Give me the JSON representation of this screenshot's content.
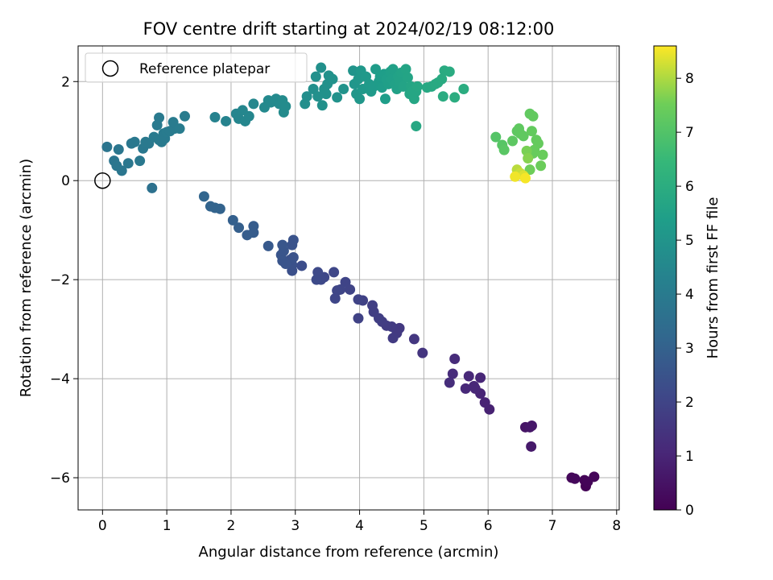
{
  "chart_data": {
    "type": "scatter",
    "title": "FOV centre drift starting at 2024/02/19 08:12:00",
    "xlabel": "Angular distance from reference (arcmin)",
    "ylabel": "Rotation from reference (arcmin)",
    "xlim": [
      -0.38,
      8.04
    ],
    "ylim": [
      -6.65,
      2.72
    ],
    "xticks": [
      0,
      1,
      2,
      3,
      4,
      5,
      6,
      7,
      8
    ],
    "yticks": [
      -6,
      -4,
      -2,
      0,
      2
    ],
    "grid": true,
    "legend": {
      "placement": "upper-left",
      "entries": [
        {
          "label": "Reference platepar",
          "marker": "open-circle",
          "color": "#000000"
        }
      ]
    },
    "reference_point": {
      "x": 0,
      "y": 0
    },
    "colorbar": {
      "label": "Hours from first FF file",
      "range": [
        0,
        8.6
      ],
      "ticks": [
        0,
        1,
        2,
        3,
        4,
        5,
        6,
        7,
        8
      ],
      "colormap": "viridis"
    },
    "points": [
      {
        "x": 7.52,
        "y": -6.17,
        "c": 0.05
      },
      {
        "x": 7.5,
        "y": -6.05,
        "c": 0.08
      },
      {
        "x": 7.55,
        "y": -6.08,
        "c": 0.12
      },
      {
        "x": 7.65,
        "y": -5.98,
        "c": 0.15
      },
      {
        "x": 7.3,
        "y": -6.0,
        "c": 0.18
      },
      {
        "x": 7.35,
        "y": -6.02,
        "c": 0.2
      },
      {
        "x": 6.58,
        "y": -4.98,
        "c": 0.55
      },
      {
        "x": 6.65,
        "y": -4.98,
        "c": 0.6
      },
      {
        "x": 6.68,
        "y": -4.95,
        "c": 0.62
      },
      {
        "x": 6.67,
        "y": -5.37,
        "c": 0.65
      },
      {
        "x": 6.02,
        "y": -4.62,
        "c": 0.9
      },
      {
        "x": 5.95,
        "y": -4.48,
        "c": 0.95
      },
      {
        "x": 5.88,
        "y": -4.3,
        "c": 1.0
      },
      {
        "x": 5.8,
        "y": -4.2,
        "c": 1.05
      },
      {
        "x": 5.88,
        "y": -3.98,
        "c": 1.05
      },
      {
        "x": 5.78,
        "y": -4.15,
        "c": 1.08
      },
      {
        "x": 5.7,
        "y": -3.95,
        "c": 1.1
      },
      {
        "x": 5.65,
        "y": -4.2,
        "c": 1.12
      },
      {
        "x": 5.48,
        "y": -3.6,
        "c": 1.2
      },
      {
        "x": 5.45,
        "y": -3.9,
        "c": 1.22
      },
      {
        "x": 5.4,
        "y": -4.08,
        "c": 1.25
      },
      {
        "x": 4.98,
        "y": -3.48,
        "c": 1.5
      },
      {
        "x": 4.85,
        "y": -3.2,
        "c": 1.55
      },
      {
        "x": 4.62,
        "y": -2.98,
        "c": 1.62
      },
      {
        "x": 4.58,
        "y": -3.08,
        "c": 1.65
      },
      {
        "x": 4.52,
        "y": -3.18,
        "c": 1.68
      },
      {
        "x": 4.5,
        "y": -2.95,
        "c": 1.7
      },
      {
        "x": 4.42,
        "y": -2.93,
        "c": 1.72
      },
      {
        "x": 4.35,
        "y": -2.85,
        "c": 1.75
      },
      {
        "x": 4.3,
        "y": -2.78,
        "c": 1.78
      },
      {
        "x": 4.22,
        "y": -2.65,
        "c": 1.8
      },
      {
        "x": 4.2,
        "y": -2.52,
        "c": 1.82
      },
      {
        "x": 4.05,
        "y": -2.42,
        "c": 1.9
      },
      {
        "x": 3.98,
        "y": -2.78,
        "c": 1.92
      },
      {
        "x": 3.98,
        "y": -2.4,
        "c": 1.95
      },
      {
        "x": 3.85,
        "y": -2.2,
        "c": 1.98
      },
      {
        "x": 3.78,
        "y": -2.05,
        "c": 2.0
      },
      {
        "x": 3.7,
        "y": -2.2,
        "c": 2.02
      },
      {
        "x": 3.65,
        "y": -2.22,
        "c": 2.04
      },
      {
        "x": 3.62,
        "y": -2.38,
        "c": 2.06
      },
      {
        "x": 3.6,
        "y": -1.85,
        "c": 2.08
      },
      {
        "x": 3.45,
        "y": -1.95,
        "c": 2.12
      },
      {
        "x": 3.4,
        "y": -2.0,
        "c": 2.15
      },
      {
        "x": 3.35,
        "y": -1.85,
        "c": 2.18
      },
      {
        "x": 3.33,
        "y": -2.0,
        "c": 2.2
      },
      {
        "x": 3.1,
        "y": -1.72,
        "c": 2.3
      },
      {
        "x": 2.95,
        "y": -1.82,
        "c": 2.4
      },
      {
        "x": 2.95,
        "y": -1.7,
        "c": 2.42
      },
      {
        "x": 2.92,
        "y": -1.6,
        "c": 2.44
      },
      {
        "x": 2.97,
        "y": -1.55,
        "c": 2.46
      },
      {
        "x": 2.95,
        "y": -1.3,
        "c": 2.48
      },
      {
        "x": 2.97,
        "y": -1.2,
        "c": 2.5
      },
      {
        "x": 2.85,
        "y": -1.68,
        "c": 2.52
      },
      {
        "x": 2.8,
        "y": -1.62,
        "c": 2.54
      },
      {
        "x": 2.78,
        "y": -1.5,
        "c": 2.56
      },
      {
        "x": 2.82,
        "y": -1.42,
        "c": 2.58
      },
      {
        "x": 2.8,
        "y": -1.3,
        "c": 2.6
      },
      {
        "x": 2.58,
        "y": -1.32,
        "c": 2.7
      },
      {
        "x": 2.35,
        "y": -0.92,
        "c": 2.8
      },
      {
        "x": 2.35,
        "y": -1.05,
        "c": 2.82
      },
      {
        "x": 2.25,
        "y": -1.1,
        "c": 2.85
      },
      {
        "x": 2.12,
        "y": -0.95,
        "c": 2.9
      },
      {
        "x": 2.03,
        "y": -0.8,
        "c": 2.95
      },
      {
        "x": 1.83,
        "y": -0.57,
        "c": 3.05
      },
      {
        "x": 1.75,
        "y": -0.55,
        "c": 3.08
      },
      {
        "x": 1.68,
        "y": -0.52,
        "c": 3.1
      },
      {
        "x": 1.58,
        "y": -0.32,
        "c": 3.15
      },
      {
        "x": 0.77,
        "y": -0.15,
        "c": 3.6
      },
      {
        "x": 0.07,
        "y": 0.68,
        "c": 3.75
      },
      {
        "x": 0.18,
        "y": 0.4,
        "c": 3.78
      },
      {
        "x": 0.22,
        "y": 0.3,
        "c": 3.8
      },
      {
        "x": 0.25,
        "y": 0.63,
        "c": 3.8
      },
      {
        "x": 0.3,
        "y": 0.2,
        "c": 3.82
      },
      {
        "x": 0.4,
        "y": 0.35,
        "c": 3.85
      },
      {
        "x": 0.45,
        "y": 0.75,
        "c": 3.85
      },
      {
        "x": 0.5,
        "y": 0.78,
        "c": 3.88
      },
      {
        "x": 0.58,
        "y": 0.4,
        "c": 3.9
      },
      {
        "x": 0.63,
        "y": 0.65,
        "c": 3.9
      },
      {
        "x": 0.67,
        "y": 0.78,
        "c": 3.92
      },
      {
        "x": 0.72,
        "y": 0.75,
        "c": 3.92
      },
      {
        "x": 0.85,
        "y": 1.12,
        "c": 3.95
      },
      {
        "x": 0.88,
        "y": 1.27,
        "c": 3.95
      },
      {
        "x": 0.8,
        "y": 0.88,
        "c": 3.96
      },
      {
        "x": 0.88,
        "y": 0.82,
        "c": 3.97
      },
      {
        "x": 0.92,
        "y": 0.78,
        "c": 3.97
      },
      {
        "x": 0.95,
        "y": 0.95,
        "c": 3.98
      },
      {
        "x": 0.97,
        "y": 0.85,
        "c": 3.98
      },
      {
        "x": 1.0,
        "y": 0.98,
        "c": 4.0
      },
      {
        "x": 1.05,
        "y": 1.0,
        "c": 4.0
      },
      {
        "x": 1.12,
        "y": 1.05,
        "c": 4.02
      },
      {
        "x": 1.1,
        "y": 1.18,
        "c": 4.02
      },
      {
        "x": 1.2,
        "y": 1.05,
        "c": 4.05
      },
      {
        "x": 1.28,
        "y": 1.3,
        "c": 4.05
      },
      {
        "x": 1.75,
        "y": 1.28,
        "c": 4.3
      },
      {
        "x": 1.92,
        "y": 1.2,
        "c": 4.35
      },
      {
        "x": 2.08,
        "y": 1.35,
        "c": 4.4
      },
      {
        "x": 2.12,
        "y": 1.25,
        "c": 4.42
      },
      {
        "x": 2.18,
        "y": 1.42,
        "c": 4.44
      },
      {
        "x": 2.22,
        "y": 1.2,
        "c": 4.45
      },
      {
        "x": 2.28,
        "y": 1.3,
        "c": 4.47
      },
      {
        "x": 2.35,
        "y": 1.55,
        "c": 4.5
      },
      {
        "x": 2.52,
        "y": 1.48,
        "c": 4.55
      },
      {
        "x": 2.58,
        "y": 1.62,
        "c": 4.57
      },
      {
        "x": 2.62,
        "y": 1.58,
        "c": 4.58
      },
      {
        "x": 2.7,
        "y": 1.65,
        "c": 4.6
      },
      {
        "x": 2.75,
        "y": 1.55,
        "c": 4.62
      },
      {
        "x": 2.8,
        "y": 1.62,
        "c": 4.63
      },
      {
        "x": 2.82,
        "y": 1.38,
        "c": 4.64
      },
      {
        "x": 2.85,
        "y": 1.5,
        "c": 4.65
      },
      {
        "x": 3.15,
        "y": 1.55,
        "c": 4.75
      },
      {
        "x": 3.18,
        "y": 1.7,
        "c": 4.77
      },
      {
        "x": 3.28,
        "y": 1.85,
        "c": 4.8
      },
      {
        "x": 3.35,
        "y": 1.7,
        "c": 4.82
      },
      {
        "x": 3.32,
        "y": 2.1,
        "c": 4.83
      },
      {
        "x": 3.4,
        "y": 2.28,
        "c": 4.84
      },
      {
        "x": 3.42,
        "y": 1.52,
        "c": 4.85
      },
      {
        "x": 3.45,
        "y": 1.85,
        "c": 4.86
      },
      {
        "x": 3.5,
        "y": 1.95,
        "c": 4.87
      },
      {
        "x": 3.48,
        "y": 1.75,
        "c": 4.88
      },
      {
        "x": 3.52,
        "y": 2.12,
        "c": 4.89
      },
      {
        "x": 3.58,
        "y": 2.05,
        "c": 4.9
      },
      {
        "x": 3.65,
        "y": 1.68,
        "c": 4.92
      },
      {
        "x": 3.75,
        "y": 1.85,
        "c": 4.95
      },
      {
        "x": 3.9,
        "y": 2.22,
        "c": 5.0
      },
      {
        "x": 3.92,
        "y": 1.95,
        "c": 5.05
      },
      {
        "x": 3.95,
        "y": 1.75,
        "c": 5.08
      },
      {
        "x": 3.98,
        "y": 2.05,
        "c": 5.1
      },
      {
        "x": 4.0,
        "y": 1.65,
        "c": 5.12
      },
      {
        "x": 4.02,
        "y": 2.22,
        "c": 5.15
      },
      {
        "x": 4.05,
        "y": 1.85,
        "c": 5.18
      },
      {
        "x": 4.1,
        "y": 2.1,
        "c": 5.2
      },
      {
        "x": 4.15,
        "y": 1.95,
        "c": 5.22
      },
      {
        "x": 4.18,
        "y": 1.8,
        "c": 5.24
      },
      {
        "x": 4.22,
        "y": 1.9,
        "c": 5.26
      },
      {
        "x": 4.25,
        "y": 2.25,
        "c": 5.28
      },
      {
        "x": 4.3,
        "y": 2.0,
        "c": 5.3
      },
      {
        "x": 4.32,
        "y": 2.1,
        "c": 5.32
      },
      {
        "x": 4.35,
        "y": 1.88,
        "c": 5.34
      },
      {
        "x": 4.38,
        "y": 2.15,
        "c": 5.36
      },
      {
        "x": 4.4,
        "y": 1.65,
        "c": 5.38
      },
      {
        "x": 4.42,
        "y": 2.05,
        "c": 5.4
      },
      {
        "x": 4.45,
        "y": 1.95,
        "c": 5.42
      },
      {
        "x": 4.48,
        "y": 2.2,
        "c": 5.44
      },
      {
        "x": 4.5,
        "y": 2.05,
        "c": 5.46
      },
      {
        "x": 4.52,
        "y": 2.25,
        "c": 5.48
      },
      {
        "x": 4.55,
        "y": 1.95,
        "c": 5.5
      },
      {
        "x": 4.58,
        "y": 1.85,
        "c": 5.52
      },
      {
        "x": 4.6,
        "y": 2.1,
        "c": 5.54
      },
      {
        "x": 4.62,
        "y": 2.0,
        "c": 5.56
      },
      {
        "x": 4.65,
        "y": 2.18,
        "c": 5.58
      },
      {
        "x": 4.68,
        "y": 1.9,
        "c": 5.6
      },
      {
        "x": 4.72,
        "y": 2.25,
        "c": 5.62
      },
      {
        "x": 4.75,
        "y": 2.08,
        "c": 5.64
      },
      {
        "x": 4.78,
        "y": 1.75,
        "c": 5.66
      },
      {
        "x": 4.8,
        "y": 1.9,
        "c": 5.68
      },
      {
        "x": 4.82,
        "y": 1.8,
        "c": 5.7
      },
      {
        "x": 4.85,
        "y": 1.65,
        "c": 5.72
      },
      {
        "x": 4.88,
        "y": 1.8,
        "c": 5.74
      },
      {
        "x": 4.9,
        "y": 1.9,
        "c": 5.75
      },
      {
        "x": 4.88,
        "y": 1.1,
        "c": 5.76
      },
      {
        "x": 5.05,
        "y": 1.88,
        "c": 5.8
      },
      {
        "x": 5.12,
        "y": 1.9,
        "c": 5.82
      },
      {
        "x": 5.18,
        "y": 1.95,
        "c": 5.84
      },
      {
        "x": 5.22,
        "y": 1.98,
        "c": 5.86
      },
      {
        "x": 5.28,
        "y": 2.05,
        "c": 5.88
      },
      {
        "x": 5.32,
        "y": 2.22,
        "c": 5.9
      },
      {
        "x": 5.4,
        "y": 2.2,
        "c": 5.92
      },
      {
        "x": 5.3,
        "y": 1.7,
        "c": 5.94
      },
      {
        "x": 5.48,
        "y": 1.68,
        "c": 5.96
      },
      {
        "x": 5.62,
        "y": 1.85,
        "c": 5.98
      },
      {
        "x": 6.12,
        "y": 0.88,
        "c": 7.05
      },
      {
        "x": 6.22,
        "y": 0.72,
        "c": 7.1
      },
      {
        "x": 6.25,
        "y": 0.62,
        "c": 7.15
      },
      {
        "x": 6.38,
        "y": 0.8,
        "c": 7.2
      },
      {
        "x": 6.45,
        "y": 1.0,
        "c": 7.22
      },
      {
        "x": 6.5,
        "y": 0.95,
        "c": 7.24
      },
      {
        "x": 6.48,
        "y": 1.05,
        "c": 7.25
      },
      {
        "x": 6.55,
        "y": 0.9,
        "c": 7.26
      },
      {
        "x": 6.65,
        "y": 1.35,
        "c": 7.28
      },
      {
        "x": 6.7,
        "y": 1.3,
        "c": 7.3
      },
      {
        "x": 6.68,
        "y": 1.0,
        "c": 7.32
      },
      {
        "x": 6.75,
        "y": 0.82,
        "c": 7.34
      },
      {
        "x": 6.78,
        "y": 0.75,
        "c": 7.36
      },
      {
        "x": 6.72,
        "y": 0.62,
        "c": 7.38
      },
      {
        "x": 6.7,
        "y": 0.55,
        "c": 7.4
      },
      {
        "x": 6.85,
        "y": 0.52,
        "c": 7.42
      },
      {
        "x": 6.82,
        "y": 0.3,
        "c": 7.45
      },
      {
        "x": 6.65,
        "y": 0.22,
        "c": 7.5
      },
      {
        "x": 6.6,
        "y": 0.6,
        "c": 7.6
      },
      {
        "x": 6.62,
        "y": 0.45,
        "c": 7.7
      },
      {
        "x": 6.45,
        "y": 0.22,
        "c": 8.1
      },
      {
        "x": 6.5,
        "y": 0.15,
        "c": 8.2
      },
      {
        "x": 6.55,
        "y": 0.1,
        "c": 8.35
      },
      {
        "x": 6.42,
        "y": 0.08,
        "c": 8.5
      },
      {
        "x": 6.58,
        "y": 0.05,
        "c": 8.55
      }
    ]
  }
}
